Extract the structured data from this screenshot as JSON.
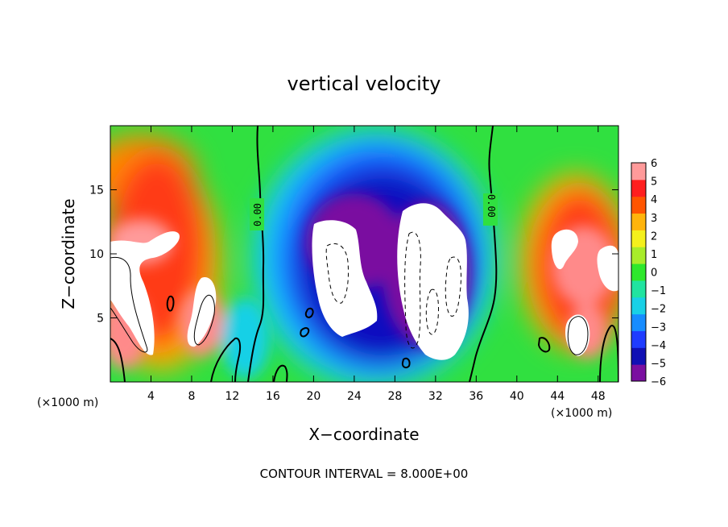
{
  "chart_data": {
    "type": "heatmap",
    "title": "vertical velocity",
    "xlabel": "X−coordinate",
    "ylabel": "Z−coordinate",
    "x_units": "(×1000 m)",
    "x_units_right": "(×1000 m)",
    "xlim": [
      0,
      50
    ],
    "ylim": [
      0,
      20
    ],
    "x_ticks": [
      4,
      8,
      12,
      16,
      20,
      24,
      28,
      32,
      36,
      40,
      44,
      48
    ],
    "y_ticks": [
      5,
      10,
      15
    ],
    "contour_interval_text": "CONTOUR INTERVAL = 8.000E+00",
    "contour_labels": [
      "0.00",
      "0.00"
    ],
    "colorbar": {
      "ticks": [
        "6",
        "5",
        "4",
        "3",
        "2",
        "1",
        "0",
        "−1",
        "−2",
        "−3",
        "−4",
        "−5",
        "−6"
      ],
      "range": [
        -6,
        6
      ],
      "colors": [
        "#7a0fa0",
        "#1010b4",
        "#1f3cff",
        "#178cff",
        "#19d0e6",
        "#21e4a0",
        "#2ee82c",
        "#a8ec2a",
        "#f4f01c",
        "#ffb40c",
        "#ff5500",
        "#ff1f1f",
        "#ff9a9a"
      ]
    },
    "saturated_regions": {
      "positive_over_6": "white",
      "negative_under_minus_6": "white"
    },
    "features": [
      {
        "sign": "positive",
        "x_range": [
          0,
          13
        ],
        "z_range": [
          0,
          18
        ]
      },
      {
        "sign": "negative",
        "x_range": [
          16,
          36
        ],
        "z_range": [
          0,
          17
        ]
      },
      {
        "sign": "positive",
        "x_range": [
          40,
          50
        ],
        "z_range": [
          0,
          16
        ]
      }
    ]
  }
}
